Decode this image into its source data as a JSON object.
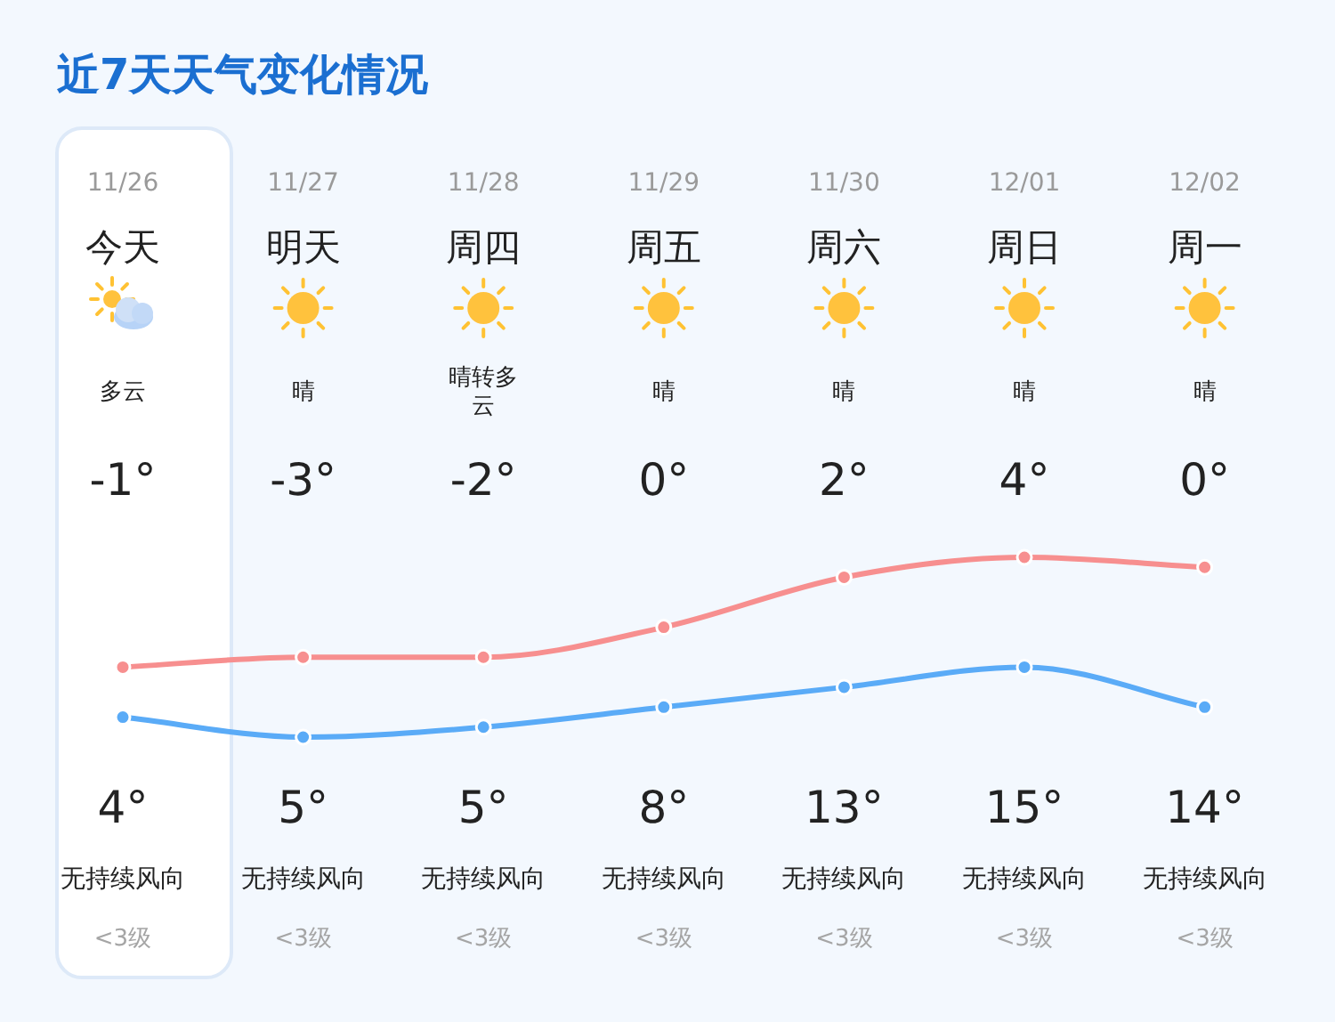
{
  "chart_data": {
    "type": "line",
    "title": "近7天天气变化情况",
    "categories": [
      "11/26",
      "11/27",
      "11/28",
      "11/29",
      "11/30",
      "12/01",
      "12/02"
    ],
    "marker": "circle",
    "series": [
      {
        "color": "#f78f8f",
        "values": [
          4,
          5,
          5,
          8,
          13,
          15,
          14
        ],
        "value_labels": [
          "4°",
          "5°",
          "5°",
          "8°",
          "13°",
          "15°",
          "14°"
        ]
      },
      {
        "color": "#5aabf7",
        "values": [
          -1,
          -3,
          -2,
          0,
          2,
          4,
          0
        ],
        "value_labels": [
          "-1°",
          "-3°",
          "-2°",
          "0°",
          "2°",
          "4°",
          "0°"
        ]
      }
    ],
    "annotations": [
      "今天",
      "明天",
      "周四",
      "周五",
      "周六",
      "周日",
      "周一",
      "多云",
      "晴",
      "晴转多云",
      "晴",
      "晴",
      "晴",
      "晴",
      "无持续风向",
      "无持续风向",
      "无持续风向",
      "无持续风向",
      "无持续风向",
      "无持续风向",
      "无持续风向",
      "<3级",
      "<3级",
      "<3级",
      "<3级",
      "<3级",
      "<3级",
      "<3级"
    ]
  }
}
